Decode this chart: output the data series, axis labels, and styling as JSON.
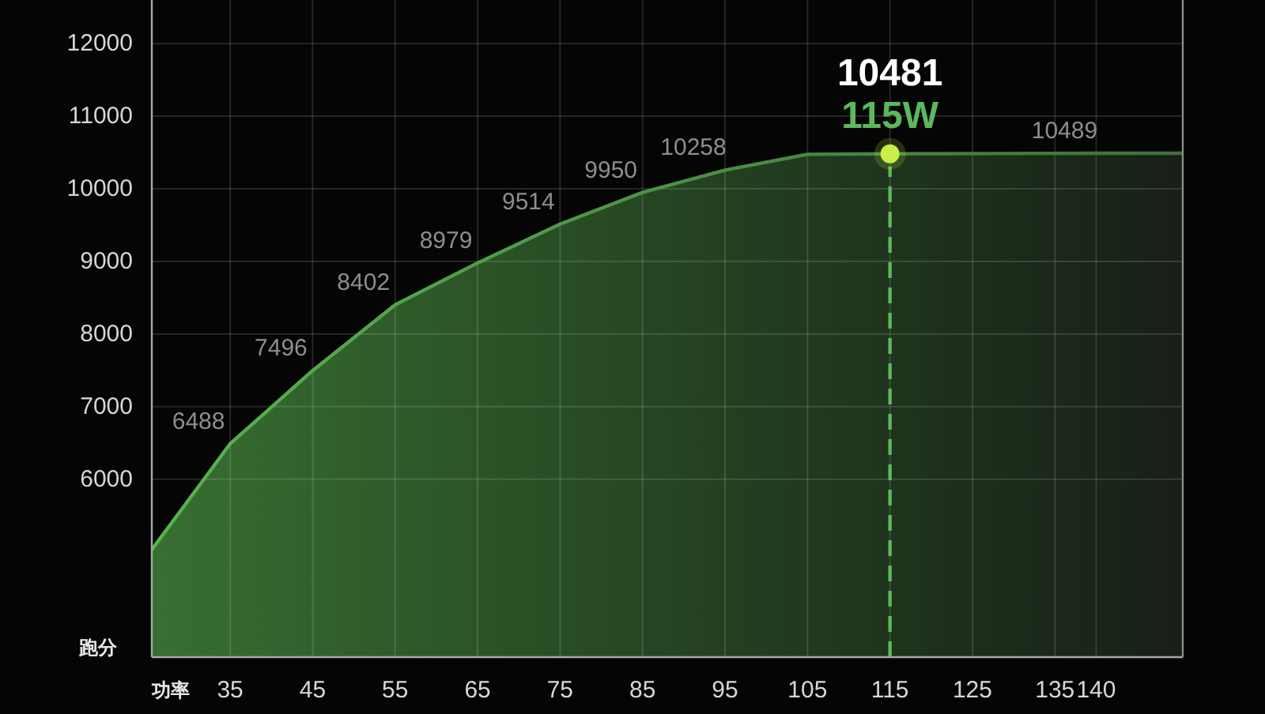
{
  "chart_data": {
    "type": "area",
    "xlabel": "功率",
    "ylabel": "跑分",
    "x": [
      25.5,
      35,
      45,
      55,
      65,
      75,
      85,
      95,
      105,
      115,
      140,
      150.5
    ],
    "series": [
      {
        "color": "#58b34f",
        "values": [
          5030,
          6488,
          7496,
          8402,
          8979,
          9514,
          9950,
          10258,
          10475,
          10481,
          10489,
          10489
        ],
        "value_labels": [
          null,
          "6488",
          "7496",
          "8402",
          "8979",
          "9514",
          "9950",
          "10258",
          null,
          null,
          "10489",
          null
        ]
      },
      {
        "type": "scatter",
        "marker": "circle",
        "color": "#c8ef4a",
        "x": [
          115
        ],
        "values": [
          10481
        ],
        "value_labels": [
          "10481"
        ]
      }
    ],
    "xlim": [
      25.5,
      150.5
    ],
    "xticks": [
      35,
      45,
      55,
      65,
      75,
      85,
      95,
      105,
      115,
      125,
      135,
      140
    ],
    "ylim": [
      3550,
      12600
    ],
    "yticks": [
      6000,
      7000,
      8000,
      9000,
      10000,
      11000,
      12000
    ],
    "grid": true,
    "ref_lines": [
      {
        "axis": "x",
        "value": 115,
        "label": "115W",
        "color": "#5cb85c",
        "line_style": "dashed"
      }
    ]
  }
}
